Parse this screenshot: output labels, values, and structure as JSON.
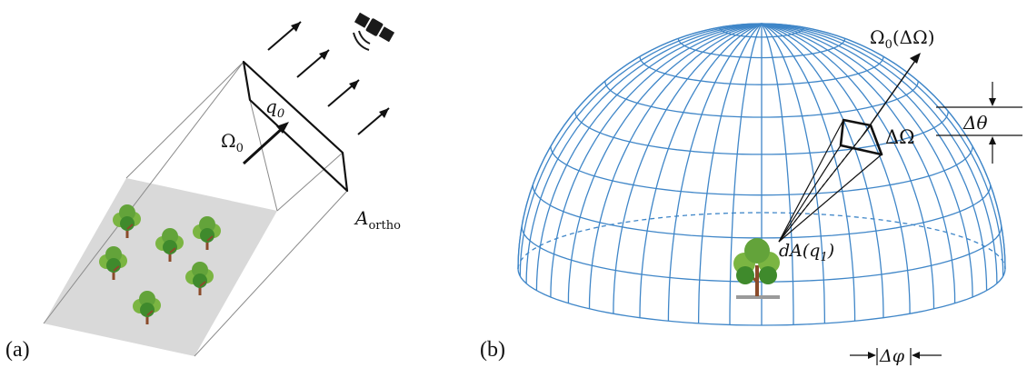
{
  "panel_a": {
    "label": "(a)",
    "omega_label": "Ω",
    "omega_sub": "0",
    "q_label": "q",
    "q_sub": "0",
    "area_label": "A",
    "area_sub": "ortho",
    "icons": [
      "satellite-icon",
      "tree-icon"
    ]
  },
  "panel_b": {
    "label": "(b)",
    "direction_label": "Ω",
    "direction_sub": "0",
    "direction_paren": "(ΔΩ)",
    "solid_angle_label": "ΔΩ",
    "theta_label": "Δθ",
    "phi_label": "Δφ",
    "area_label": "dA(q",
    "area_sub": "1",
    "area_close": ")",
    "colors": {
      "grid": "#3f86c8"
    }
  }
}
